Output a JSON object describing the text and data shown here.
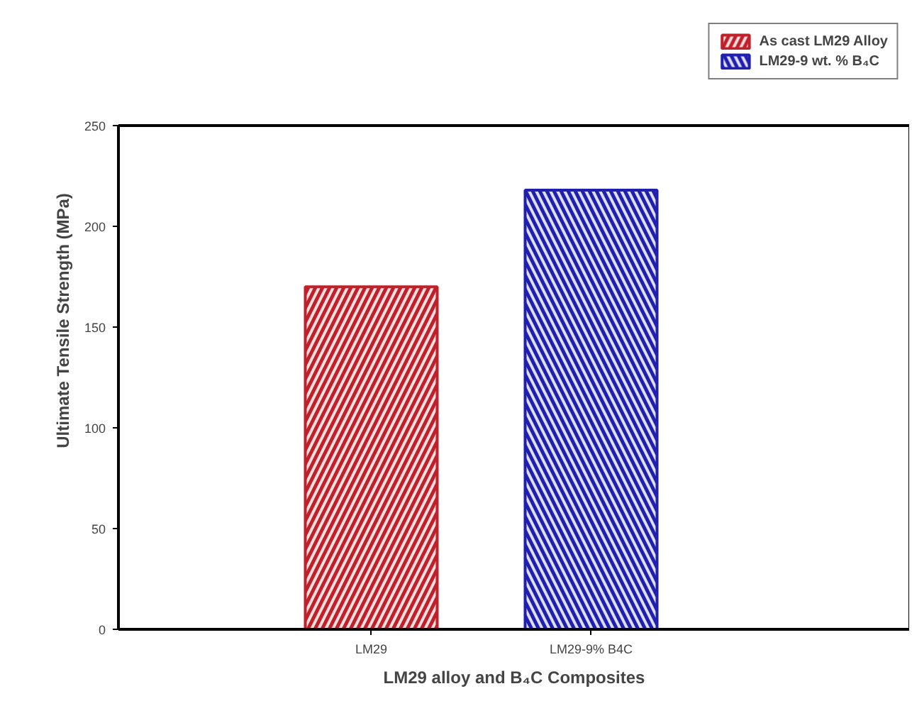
{
  "chart_data": {
    "type": "bar",
    "xlabel": "LM29 alloy and B₄C Composites",
    "ylabel": "Ultimate Tensile Strength (MPa)",
    "categories": [
      "LM29",
      "LM29-9% B4C"
    ],
    "series": [
      {
        "name": "As cast LM29 Alloy",
        "color": "#c0202a",
        "values": [
          170,
          null
        ]
      },
      {
        "name": "LM29-9 wt. % B₄C",
        "color": "#2020b0",
        "values": [
          null,
          218
        ]
      }
    ],
    "ylim": [
      0,
      250
    ],
    "yticks": [
      0,
      50,
      100,
      150,
      200,
      250
    ],
    "grid": false,
    "legend": "top right"
  }
}
